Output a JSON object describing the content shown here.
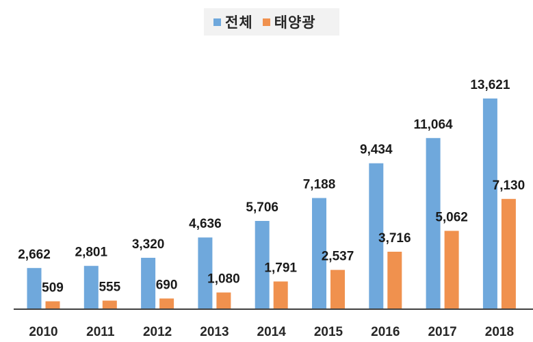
{
  "chart_data": {
    "type": "bar",
    "categories": [
      "2010",
      "2011",
      "2012",
      "2013",
      "2014",
      "2015",
      "2016",
      "2017",
      "2018"
    ],
    "series": [
      {
        "name": "전체",
        "color": "#6fa8dc",
        "values": [
          2662,
          2801,
          3320,
          4636,
          5706,
          7188,
          9434,
          11064,
          13621
        ],
        "labels": [
          "2,662",
          "2,801",
          "3,320",
          "4,636",
          "5,706",
          "7,188",
          "9,434",
          "11,064",
          "13,621"
        ]
      },
      {
        "name": "태양광",
        "color": "#f0914e",
        "values": [
          509,
          555,
          690,
          1080,
          1791,
          2537,
          3716,
          5062,
          7130
        ],
        "labels": [
          "509",
          "555",
          "690",
          "1,080",
          "1,791",
          "2,537",
          "3,716",
          "5,062",
          "7,130"
        ]
      }
    ],
    "legend_position": "top-center",
    "grid": false,
    "ylim": [
      0,
      13621
    ]
  }
}
